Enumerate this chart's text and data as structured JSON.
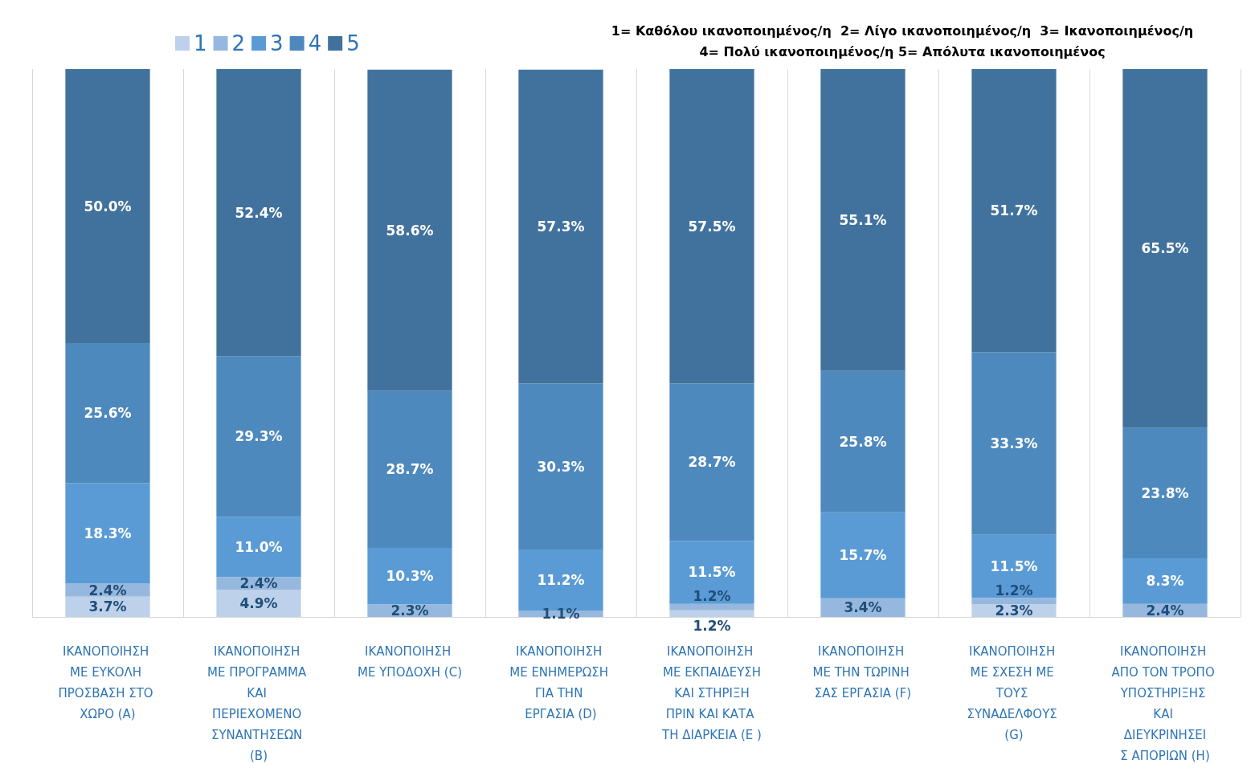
{
  "chart_data": {
    "type": "bar",
    "stacked": true,
    "categories": [
      "ΙΚΑΝΟΠΟΙΗΣΗ ΜΕ ΕΥΚΟΛΗ ΠΡΟΣΒΑΣΗ ΣΤΟ ΧΩΡΟ (A)",
      "ΙΚΑΝΟΠΟΙΗΣΗ ΜΕ ΠΡΟΓΡΑΜΜΑ ΚΑΙ ΠΕΡΙΕΧΟΜΕΝΟ ΣΥΝΑΝΤΗΣΕΩΝ (B)",
      "ΙΚΑΝΟΠΟΙΗΣΗ ΜΕ ΥΠΟΔΟΧΗ (C)",
      "ΙΚΑΝΟΠΟΙΗΣΗ ΜΕ ΕΝΗΜΕΡΩΣΗ ΓΙΑ ΤΗΝ ΕΡΓΑΣΙΑ (D)",
      "ΙΚΑΝΟΠΟΙΗΣΗ ΜΕ ΕΚΠΑΙΔΕΥΣΗ ΚΑΙ ΣΤΗΡΙΞΗ ΠΡΙΝ ΚΑΙ ΚΑΤΑ ΤΗ ΔΙΑΡΚΕΙΑ (E )",
      "ΙΚΑΝΟΠΟΙΗΣΗ ΜΕ ΤΗΝ ΤΩΡΙΝΗ ΣΑΣ ΕΡΓΑΣΙΑ (F)",
      "ΙΚΑΝΟΠΟΙΗΣΗ ΜΕ ΣΧΕΣΗ ΜΕ ΤΟΥΣ ΣΥΝΑΔΕΛΦΟΥΣ (G)",
      "ΙΚΑΝΟΠΟΙΗΣΗ ΑΠΟ ΤΟΝ ΤΡΟΠΟ ΥΠΟΣΤΗΡΙΞΗΣ ΚΑΙ ΔΙΕΥΚΡΙΝΗΣΕΙΣ ΑΠΟΡΙΩΝ (H)"
    ],
    "series": [
      {
        "name": "1",
        "color": "#bdd1ea",
        "values": [
          3.7,
          4.9,
          null,
          null,
          1.2,
          null,
          2.3,
          null
        ],
        "value_labels": [
          "3.7%",
          "4.9%",
          null,
          null,
          "1.2%",
          null,
          "2.3%",
          null
        ]
      },
      {
        "name": "2",
        "color": "#97b8de",
        "values": [
          2.4,
          2.4,
          2.3,
          1.1,
          1.2,
          3.4,
          1.2,
          2.4
        ],
        "value_labels": [
          "2.4%",
          "2.4%",
          "2.3%",
          "1.1%",
          "1.2%",
          "3.4%",
          "1.2%",
          "2.4%"
        ]
      },
      {
        "name": "3",
        "color": "#5b9bd5",
        "values": [
          18.3,
          11.0,
          10.3,
          11.2,
          11.5,
          15.7,
          11.5,
          8.3
        ],
        "value_labels": [
          "18.3%",
          "11.0%",
          "10.3%",
          "11.2%",
          "11.5%",
          "15.7%",
          "11.5%",
          "8.3%"
        ]
      },
      {
        "name": "4",
        "color": "#4e89bd",
        "values": [
          25.6,
          29.3,
          28.7,
          30.3,
          28.7,
          25.8,
          33.3,
          23.8
        ],
        "value_labels": [
          "25.6%",
          "29.3%",
          "28.7%",
          "30.3%",
          "28.7%",
          "25.8%",
          "33.3%",
          "23.8%"
        ]
      },
      {
        "name": "5",
        "color": "#41729e",
        "values": [
          50.0,
          52.4,
          58.6,
          57.3,
          57.5,
          55.1,
          51.7,
          65.5
        ],
        "value_labels": [
          "50.0%",
          "52.4%",
          "58.6%",
          "57.3%",
          "57.5%",
          "55.1%",
          "51.7%",
          "65.5%"
        ]
      }
    ],
    "ylim": [
      0,
      100
    ],
    "tick_labels": "x",
    "grid": "x",
    "legend": "top left",
    "annotations": [
      "1= Καθόλου ικανοποιημένος/η  2= Λίγο ικανοποιημένος/η  3= Ικανοποιημένος/η",
      "4= Πολύ ικανοποιημένος/η 5= Απόλυτα ικανοποιημένος"
    ]
  }
}
